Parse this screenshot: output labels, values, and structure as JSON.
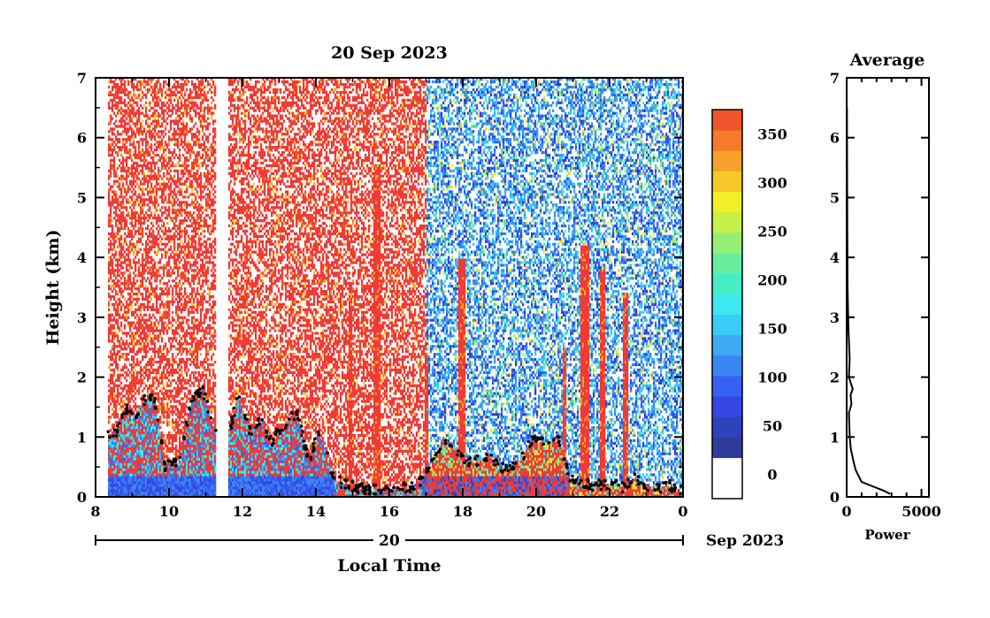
{
  "chart_data": [
    {
      "type": "heatmap",
      "title": "20 Sep 2023",
      "xlabel": "Local Time",
      "ylabel": "Height (km)",
      "x_ticks": [
        "8",
        "10",
        "12",
        "14",
        "16",
        "18",
        "20",
        "22",
        "0"
      ],
      "x_range_hours": [
        8,
        24
      ],
      "y_ticks": [
        "0",
        "1",
        "2",
        "3",
        "4",
        "5",
        "6",
        "7"
      ],
      "ylim": [
        0,
        7
      ],
      "date_bar": {
        "day": "20",
        "month_year": "Sep 2023"
      },
      "colorbar": {
        "tick_labels": [
          "0",
          "50",
          "100",
          "150",
          "200",
          "250",
          "300",
          "350"
        ],
        "range": [
          -25,
          375
        ],
        "colors": [
          "#ffffff",
          "#2d3c9c",
          "#2e42ba",
          "#3447e4",
          "#3661f0",
          "#3b86f2",
          "#3ea8f3",
          "#39ccf6",
          "#3de8f0",
          "#47eec4",
          "#67ee9f",
          "#96ef75",
          "#c6ef49",
          "#f0ef28",
          "#f7c82a",
          "#f6a12b",
          "#f47b2a",
          "#f1532d",
          "#ef3a36"
        ]
      },
      "data_gaps_hours": [
        [
          8.0,
          8.33
        ],
        [
          11.3,
          11.6
        ]
      ],
      "boundary_layer_height_km": {
        "t": [
          8.3,
          8.6,
          8.8,
          9.0,
          9.3,
          9.6,
          9.9,
          10.3,
          10.6,
          10.9,
          11.2,
          11.6,
          11.9,
          12.2,
          12.5,
          12.8,
          13.1,
          13.5,
          13.8,
          14.1,
          14.5,
          14.8,
          15.2,
          15.5,
          15.8,
          16.2,
          16.6,
          16.9,
          17.2,
          17.5,
          17.8,
          18.1,
          18.4,
          18.7,
          19.0,
          19.3,
          19.6,
          19.9,
          20.2,
          20.6,
          20.9,
          21.2,
          21.5,
          21.8,
          22.1,
          22.4,
          22.7,
          23.0,
          23.3,
          23.6,
          23.9
        ],
        "h": [
          1.05,
          1.1,
          1.5,
          1.3,
          1.6,
          1.65,
          0.5,
          0.6,
          1.6,
          1.8,
          1.2,
          1.0,
          1.7,
          1.1,
          1.3,
          0.9,
          1.2,
          1.4,
          0.6,
          1.1,
          0.3,
          0.2,
          0.15,
          0.1,
          0.15,
          0.15,
          0.15,
          0.3,
          0.6,
          1.0,
          0.8,
          0.55,
          0.6,
          0.7,
          0.5,
          0.5,
          0.65,
          0.95,
          0.9,
          1.0,
          0.3,
          0.25,
          0.2,
          0.2,
          0.25,
          0.15,
          0.3,
          0.2,
          0.15,
          0.2,
          0.1
        ]
      }
    },
    {
      "type": "line",
      "title": "Average",
      "xlabel": "Power",
      "x_ticks": [
        "0",
        "5000"
      ],
      "xlim": [
        0,
        5500
      ],
      "y_ticks": [
        "0",
        "1",
        "2",
        "3",
        "4",
        "5",
        "6",
        "7"
      ],
      "ylim": [
        0,
        7
      ],
      "x": [
        2900,
        2500,
        2000,
        1500,
        1000,
        800,
        600,
        450,
        280,
        200,
        180,
        150,
        320,
        260,
        400,
        150,
        200,
        120,
        60,
        40,
        20
      ],
      "y": [
        0.05,
        0.1,
        0.15,
        0.2,
        0.25,
        0.35,
        0.45,
        0.6,
        0.8,
        1.0,
        1.2,
        1.4,
        1.55,
        1.7,
        1.8,
        2.0,
        2.3,
        2.8,
        3.5,
        4.5,
        6.5
      ]
    }
  ]
}
